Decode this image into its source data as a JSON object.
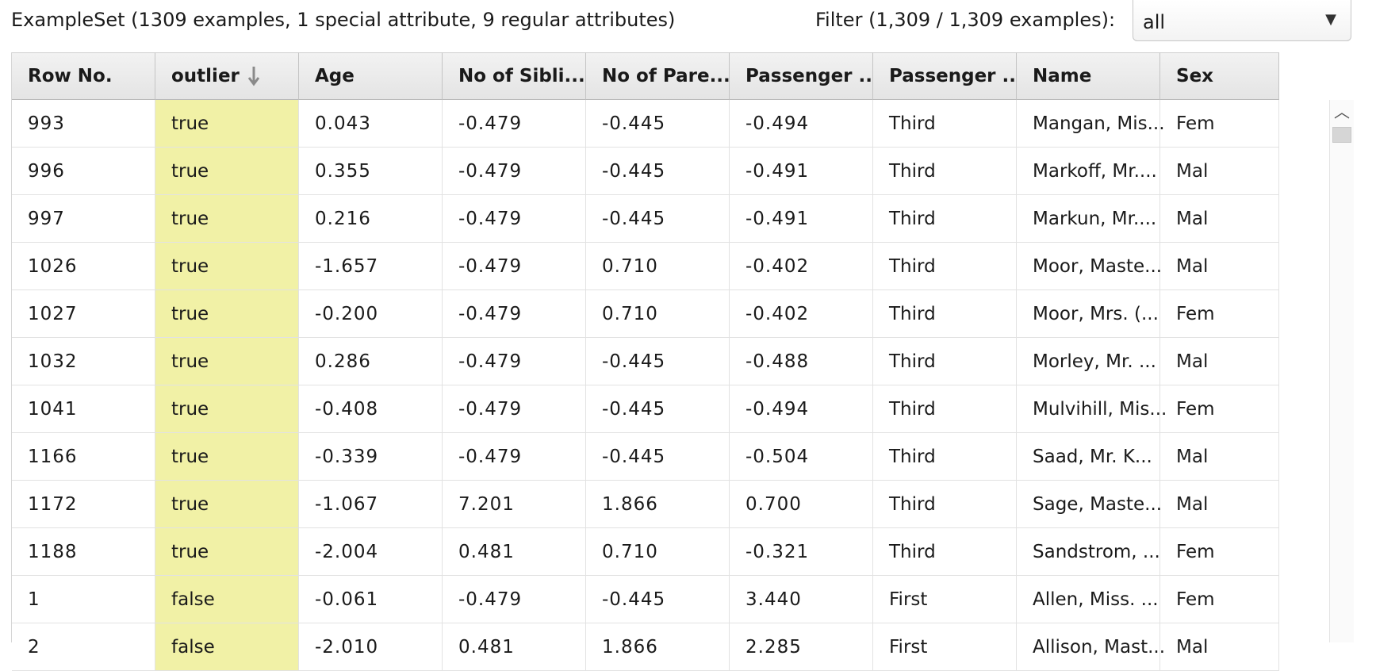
{
  "header": {
    "summary": "ExampleSet (1309 examples, 1 special attribute, 9 regular attributes)",
    "filter_label": "Filter (1,309 / 1,309 examples):",
    "filter_value": "all"
  },
  "table": {
    "columns": [
      "Row No.",
      "outlier",
      "Age",
      "No of Sibli...",
      "No of Pare...",
      "Passenger ...",
      "Passenger ...",
      "Name",
      "Sex"
    ],
    "sorted_column_icon": "arrow-down-icon",
    "highlight_color": "#f1f1a6",
    "rows": [
      [
        "993",
        "true",
        "0.043",
        "-0.479",
        "-0.445",
        "-0.494",
        "Third",
        "Mangan, Mis...",
        "Fem"
      ],
      [
        "996",
        "true",
        "0.355",
        "-0.479",
        "-0.445",
        "-0.491",
        "Third",
        "Markoff, Mr....",
        "Mal"
      ],
      [
        "997",
        "true",
        "0.216",
        "-0.479",
        "-0.445",
        "-0.491",
        "Third",
        "Markun, Mr....",
        "Mal"
      ],
      [
        "1026",
        "true",
        "-1.657",
        "-0.479",
        "0.710",
        "-0.402",
        "Third",
        "Moor, Maste...",
        "Mal"
      ],
      [
        "1027",
        "true",
        "-0.200",
        "-0.479",
        "0.710",
        "-0.402",
        "Third",
        "Moor, Mrs. (...",
        "Fem"
      ],
      [
        "1032",
        "true",
        "0.286",
        "-0.479",
        "-0.445",
        "-0.488",
        "Third",
        "Morley, Mr. ...",
        "Mal"
      ],
      [
        "1041",
        "true",
        "-0.408",
        "-0.479",
        "-0.445",
        "-0.494",
        "Third",
        "Mulvihill, Mis...",
        "Fem"
      ],
      [
        "1166",
        "true",
        "-0.339",
        "-0.479",
        "-0.445",
        "-0.504",
        "Third",
        "Saad, Mr. K...",
        "Mal"
      ],
      [
        "1172",
        "true",
        "-1.067",
        "7.201",
        "1.866",
        "0.700",
        "Third",
        "Sage, Maste...",
        "Mal"
      ],
      [
        "1188",
        "true",
        "-2.004",
        "0.481",
        "0.710",
        "-0.321",
        "Third",
        "Sandstrom, ...",
        "Fem"
      ],
      [
        "1",
        "false",
        "-0.061",
        "-0.479",
        "-0.445",
        "3.440",
        "First",
        "Allen, Miss. ...",
        "Fem"
      ],
      [
        "2",
        "false",
        "-2.010",
        "0.481",
        "1.866",
        "2.285",
        "First",
        "Allison, Mast...",
        "Mal"
      ]
    ]
  }
}
